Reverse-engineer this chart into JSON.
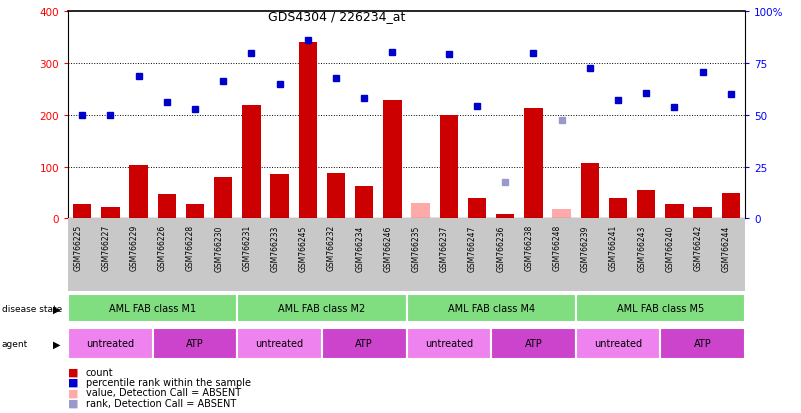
{
  "title": "GDS4304 / 226234_at",
  "samples": [
    "GSM766225",
    "GSM766227",
    "GSM766229",
    "GSM766226",
    "GSM766228",
    "GSM766230",
    "GSM766231",
    "GSM766233",
    "GSM766245",
    "GSM766232",
    "GSM766234",
    "GSM766246",
    "GSM766235",
    "GSM766237",
    "GSM766247",
    "GSM766236",
    "GSM766238",
    "GSM766248",
    "GSM766239",
    "GSM766241",
    "GSM766243",
    "GSM766240",
    "GSM766242",
    "GSM766244"
  ],
  "count_values": [
    28,
    22,
    103,
    47,
    27,
    80,
    220,
    85,
    340,
    88,
    62,
    228,
    null,
    200,
    40,
    8,
    213,
    null,
    108,
    40,
    55,
    28,
    22,
    50
  ],
  "rank_values": [
    200,
    200,
    275,
    225,
    212,
    265,
    320,
    260,
    345,
    272,
    232,
    322,
    null,
    318,
    218,
    null,
    320,
    null,
    290,
    228,
    242,
    215,
    282,
    240
  ],
  "count_absent": [
    null,
    null,
    null,
    null,
    null,
    null,
    null,
    null,
    null,
    null,
    null,
    null,
    30,
    null,
    null,
    null,
    null,
    18,
    null,
    null,
    null,
    null,
    null,
    null
  ],
  "rank_absent": [
    null,
    null,
    null,
    null,
    null,
    null,
    null,
    null,
    null,
    null,
    null,
    null,
    null,
    null,
    null,
    70,
    null,
    190,
    null,
    null,
    null,
    null,
    null,
    null
  ],
  "disease_groups": [
    {
      "label": "AML FAB class M1",
      "start": 0,
      "end": 6
    },
    {
      "label": "AML FAB class M2",
      "start": 6,
      "end": 12
    },
    {
      "label": "AML FAB class M4",
      "start": 12,
      "end": 18
    },
    {
      "label": "AML FAB class M5",
      "start": 18,
      "end": 24
    }
  ],
  "agent_groups": [
    {
      "label": "untreated",
      "start": 0,
      "end": 3
    },
    {
      "label": "ATP",
      "start": 3,
      "end": 6
    },
    {
      "label": "untreated",
      "start": 6,
      "end": 9
    },
    {
      "label": "ATP",
      "start": 9,
      "end": 12
    },
    {
      "label": "untreated",
      "start": 12,
      "end": 15
    },
    {
      "label": "ATP",
      "start": 15,
      "end": 18
    },
    {
      "label": "untreated",
      "start": 18,
      "end": 21
    },
    {
      "label": "ATP",
      "start": 21,
      "end": 24
    }
  ],
  "bar_color_red": "#cc0000",
  "bar_color_pink": "#ffaaaa",
  "dot_color_blue": "#0000cc",
  "dot_color_lightblue": "#9999cc",
  "bg_gray": "#c8c8c8",
  "bg_green": "#80dd80",
  "bg_violet_light": "#ee82ee",
  "bg_violet_dark": "#cc44cc",
  "ylim_left": [
    0,
    400
  ],
  "ylim_right": [
    0,
    100
  ],
  "yticks_left": [
    0,
    100,
    200,
    300,
    400
  ],
  "yticks_right": [
    0,
    25,
    50,
    75,
    100
  ],
  "ytick_labels_right": [
    "0",
    "25",
    "50",
    "75",
    "100%"
  ]
}
